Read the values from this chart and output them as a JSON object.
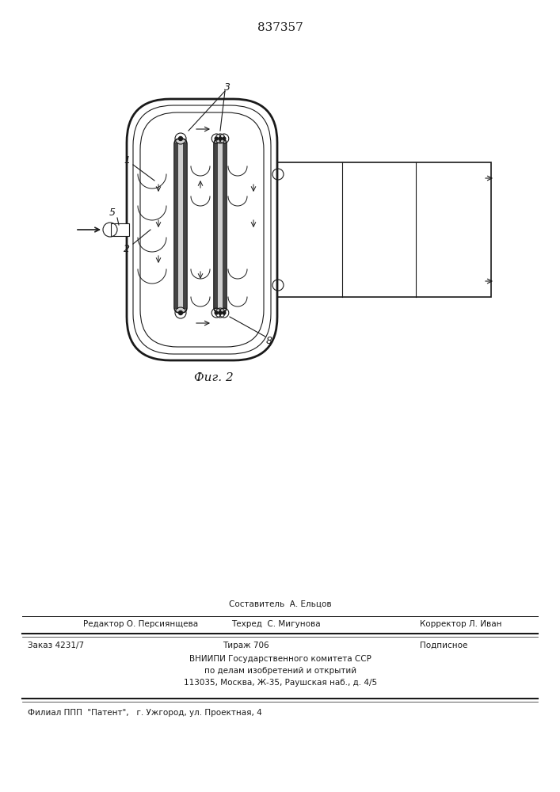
{
  "title_number": "837357",
  "fig_label": "Фиг. 2",
  "bg_color": "#ffffff",
  "line_color": "#1a1a1a",
  "footer": {
    "sostavitel": "Составитель  А. Ельцов",
    "redaktor": "Редактор О. Персиянщева",
    "tehred": "Техред  С. Мигунова",
    "korrektor": "Корректор Л. Иван",
    "zakaz": "Заказ 4231/7",
    "tirazh": "Тираж 706",
    "podpisnoe": "Подписное",
    "vniipи_1": "ВНИИПИ Государственного комитета ССР",
    "vniipи_2": "по делам изобретений и открытий",
    "vniipи_3": "113035, Москва, Ж-35, Раушская наб., д. 4/5",
    "filial": "Филиал ППП  \"Патент\",   г. Ужгород, ул. Проектная, 4"
  }
}
